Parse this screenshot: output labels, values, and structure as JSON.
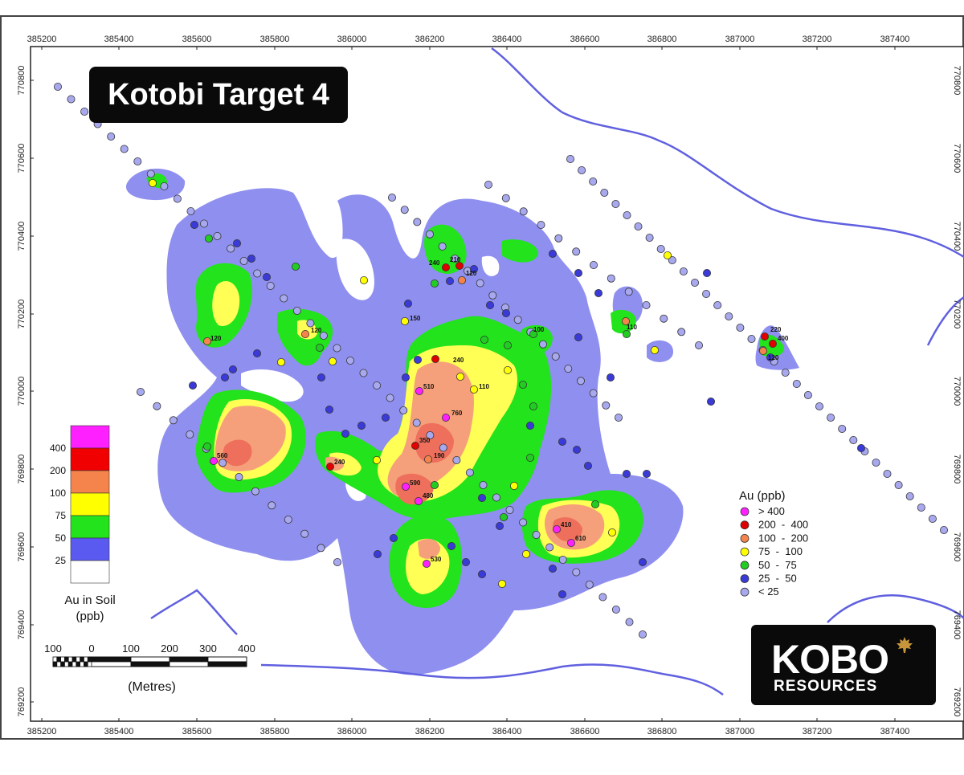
{
  "title": "Kotobi Target 4",
  "axes": {
    "x_ticks": [
      "385200",
      "385400",
      "385600",
      "385800",
      "386000",
      "386200",
      "386400",
      "386600",
      "386800",
      "387000",
      "387200",
      "387400"
    ],
    "y_ticks": [
      "770800",
      "770600",
      "770400",
      "770200",
      "770000",
      "769800",
      "769600",
      "769400",
      "769200"
    ]
  },
  "soil_legend": {
    "labels": [
      "400",
      "200",
      "100",
      "75",
      "50",
      "25"
    ],
    "colors": [
      "#ff20ff",
      "#f00000",
      "#f5844c",
      "#ffff00",
      "#22e31c",
      "#5a5af0",
      "#ffffff"
    ],
    "caption_line1": "Au in Soil",
    "caption_line2": "(ppb)"
  },
  "au_legend": {
    "title": "Au (ppb)",
    "rows": [
      {
        "color": "#ff20ff",
        "text": "> 400"
      },
      {
        "color": "#e00000",
        "text": "200  -  400"
      },
      {
        "color": "#f5844c",
        "text": "100  -  200"
      },
      {
        "color": "#ffff00",
        "text": "75  -  100"
      },
      {
        "color": "#22cc22",
        "text": "50  -  75"
      },
      {
        "color": "#3a3ad8",
        "text": "25  -  50"
      },
      {
        "color": "#a8a8ee",
        "text": "< 25"
      }
    ]
  },
  "scale_bar": {
    "labels": [
      "100",
      "0",
      "100",
      "200",
      "300",
      "400"
    ],
    "units": "(Metres)"
  },
  "logo": {
    "word": "KOBO",
    "sub": "RESOURCES",
    "icon": "maple-leaf-icon"
  },
  "sample_labels": [
    {
      "text": "240"
    },
    {
      "text": "210"
    },
    {
      "text": "120"
    },
    {
      "text": "150"
    },
    {
      "text": "120"
    },
    {
      "text": "120"
    },
    {
      "text": "100"
    },
    {
      "text": "110"
    },
    {
      "text": "220"
    },
    {
      "text": "400"
    },
    {
      "text": "120"
    },
    {
      "text": "240"
    },
    {
      "text": "510"
    },
    {
      "text": "110"
    },
    {
      "text": "760"
    },
    {
      "text": "350"
    },
    {
      "text": "190"
    },
    {
      "text": "560"
    },
    {
      "text": "240"
    },
    {
      "text": "590"
    },
    {
      "text": "480"
    },
    {
      "text": "410"
    },
    {
      "text": "610"
    },
    {
      "text": "530"
    }
  ],
  "colors": {
    "contour_25": "#8f8ff0",
    "contour_50": "#22e31c",
    "contour_75": "#ffff55",
    "contour_100": "#f5a07a",
    "contour_200": "#ee6f5c",
    "drainage": "#6060e0"
  }
}
